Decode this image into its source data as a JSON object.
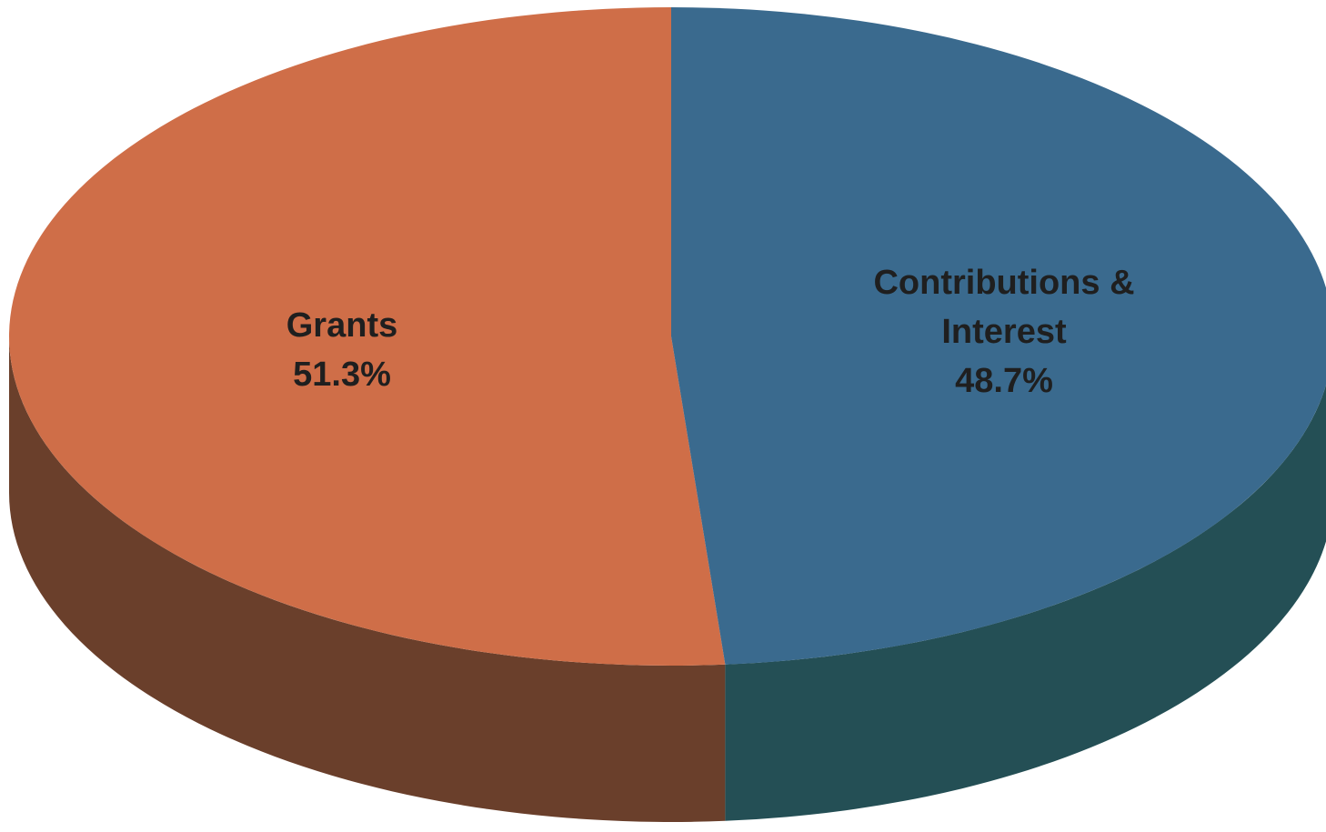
{
  "chart_data": {
    "type": "pie",
    "style": "3d",
    "title": "",
    "slices": [
      {
        "label_lines": [
          "Grants",
          "51.3%"
        ],
        "category": "Grants",
        "value": 51.3,
        "unit": "%",
        "top_color": "#cf6e48",
        "side_color": "#6a3f2b"
      },
      {
        "label_lines": [
          "Contributions &",
          "Interest",
          "48.7%"
        ],
        "category": "Contributions & Interest",
        "value": 48.7,
        "unit": "%",
        "top_color": "#3a6a8e",
        "side_color": "#244f55"
      }
    ]
  }
}
